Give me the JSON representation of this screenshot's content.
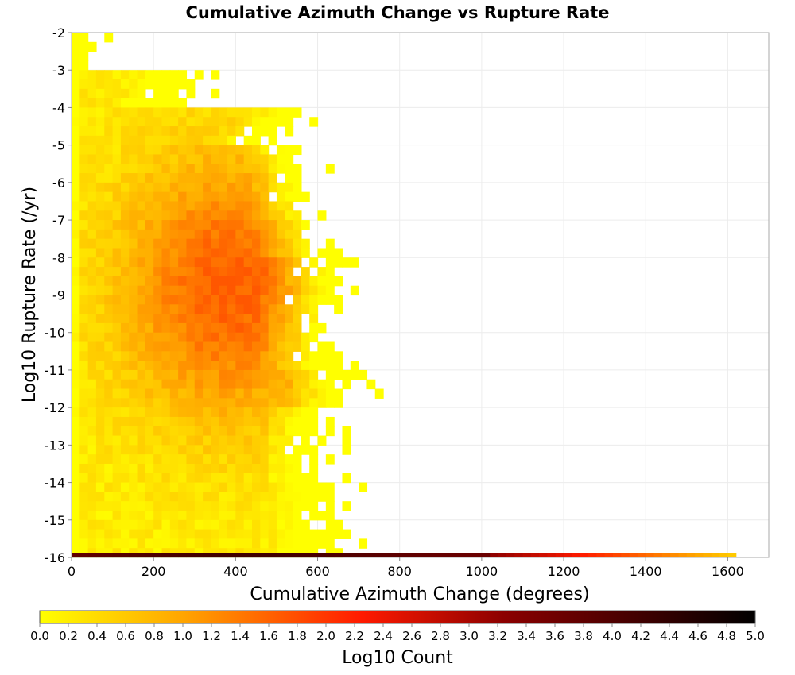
{
  "chart_data": {
    "type": "heatmap",
    "title": "Cumulative Azimuth Change vs Rupture Rate",
    "xlabel": "Cumulative Azimuth Change (degrees)",
    "ylabel": "Log10 Rupture Rate (/yr)",
    "xlim": [
      0,
      1700
    ],
    "ylim": [
      -16,
      -2
    ],
    "x_ticks": [
      "0",
      "200",
      "400",
      "600",
      "800",
      "1000",
      "1200",
      "1400",
      "1600"
    ],
    "y_ticks": [
      "-2",
      "-3",
      "-4",
      "-5",
      "-6",
      "-7",
      "-8",
      "-9",
      "-10",
      "-11",
      "-12",
      "-13",
      "-14",
      "-15",
      "-16"
    ],
    "grid": true,
    "bin_size": {
      "x": 20,
      "y": 0.25
    },
    "colorbar": {
      "label": "Log10 Count",
      "range": [
        0.0,
        5.0
      ],
      "ticks": [
        "0.0",
        "0.2",
        "0.4",
        "0.6",
        "0.8",
        "1.0",
        "1.2",
        "1.4",
        "1.6",
        "1.8",
        "2.0",
        "2.2",
        "2.4",
        "2.6",
        "2.8",
        "3.0",
        "3.2",
        "3.4",
        "3.6",
        "3.8",
        "4.0",
        "4.2",
        "4.4",
        "4.6",
        "4.8",
        "5.0"
      ],
      "colors": [
        "#ffff00",
        "#ffa500",
        "#ff0000",
        "#8b0000",
        "#000000"
      ]
    },
    "density_summary": {
      "peak_log_count_range": [
        1.0,
        1.6
      ],
      "peak_region": {
        "x": [
          150,
          550
        ],
        "y": [
          -11,
          -5
        ]
      },
      "bottom_row": {
        "y": -16,
        "x_extent": [
          0,
          1620
        ],
        "max_log_count": 4.6
      }
    }
  }
}
